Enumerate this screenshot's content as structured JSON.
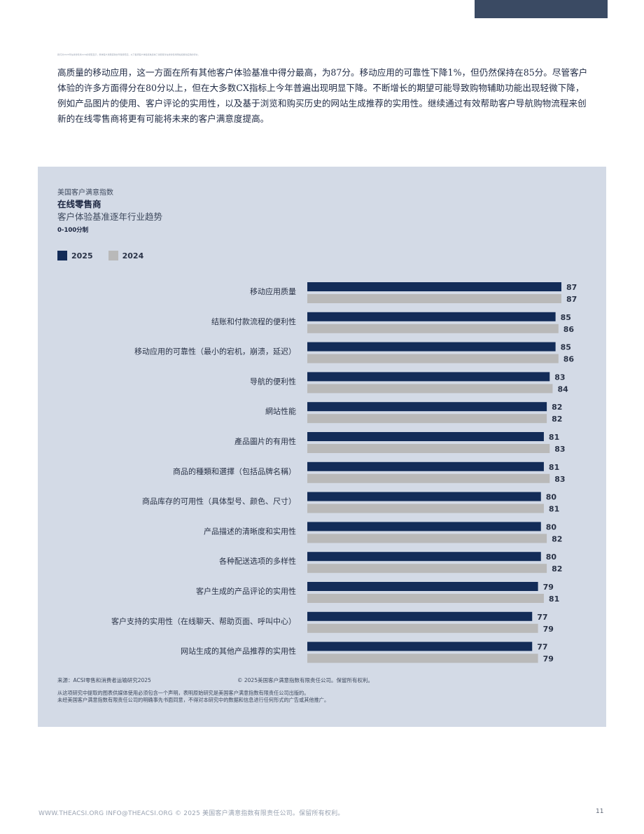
{
  "header": {
    "fine_print": "我们对2025年在线零售商ACSI的调查显示，整体客户满意度较去年保持稳定。以下各项客户体验基准反映了消费者对在线零售商网站和移动应用的评价。"
  },
  "intro": {
    "text": "高质量的移动应用，这一方面在所有其他客户体验基准中得分最高，为87分。移动应用的可靠性下降1%，但仍然保持在85分。尽管客户体验的许多方面得分在80分以上，但在大多数CX指标上今年普遍出现明显下降。不断增长的期望可能导致购物辅助功能出现轻微下降，例如产品图片的使用、客户评论的实用性，以及基于浏览和购买历史的网站生成推荐的实用性。继续通过有效帮助客户导航购物流程来创新的在线零售商将更有可能将未来的客户满意度提高。"
  },
  "chart_header": {
    "super": "美国客户满意指数",
    "title": "在线零售商",
    "subtitle": "客户体验基准逐年行业趋势",
    "unit": "0-100分制"
  },
  "colors": {
    "series_2025": "#132c58",
    "series_2024": "#b9b9b9",
    "panel_bg": "#d3dae6"
  },
  "chart_data": {
    "type": "bar",
    "orientation": "horizontal",
    "xlim": [
      0,
      100
    ],
    "grid": false,
    "legend_position": "top-left",
    "categories": [
      "移动应用质量",
      "结账和付款流程的便利性",
      "移动应用的可靠性（最小的宕机，崩溃，延迟）",
      "导航的便利性",
      "網站性能",
      "產品圖片的有用性",
      "商品的種類和選擇（包括品牌名稱）",
      "商品库存的可用性（具体型号、颜色、尺寸）",
      "产品描述的清晰度和实用性",
      "各种配送选项的多样性",
      "客户生成的产品评论的实用性",
      "客户支持的实用性（在线聊天、帮助页面、呼叫中心）",
      "网站生成的其他产品推荐的实用性"
    ],
    "series": [
      {
        "name": "2025",
        "values": [
          87,
          85,
          85,
          83,
          82,
          81,
          81,
          80,
          80,
          80,
          79,
          77,
          77
        ]
      },
      {
        "name": "2024",
        "values": [
          87,
          86,
          86,
          84,
          82,
          83,
          83,
          81,
          82,
          82,
          81,
          79,
          79
        ]
      }
    ]
  },
  "source": {
    "left": "来源：ACSI零售和消费者运输研究2025",
    "right": "© 2025美国客户满意指数有限责任公司。保留所有权利。",
    "notice_line1": "从这项研究中提取的图表供媒体使用必须包含一个声明，表明原始研究是美国客户满意指数有限责任公司出版的。",
    "notice_line2": "未经美国客户满意指数有限责任公司的明确事先书面同意，不得对本研究中的数据和信息进行任何形式的广告或其他推广。"
  },
  "footer": {
    "text": "WWW.THEACSI.ORG INFO@THEACSI.ORG © 2025 美国客户满意指数有限责任公司。保留所有权利。",
    "page_number": "11"
  }
}
